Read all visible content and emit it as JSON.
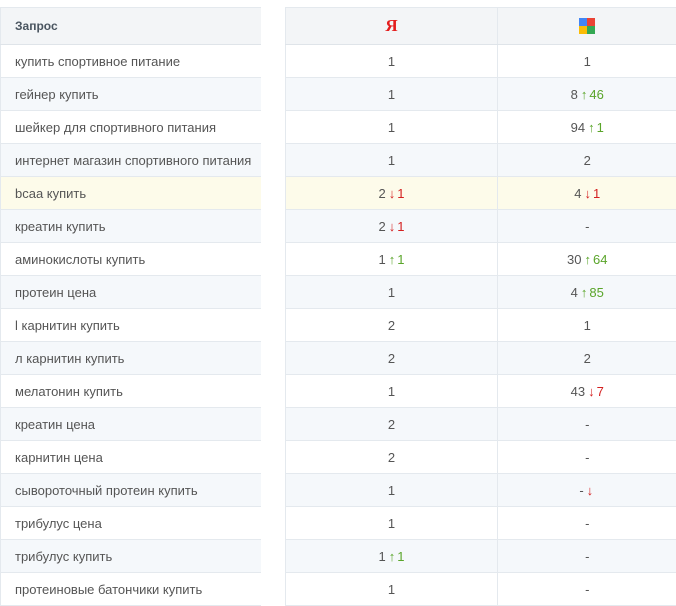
{
  "header": {
    "query_label": "Запрос",
    "yandex_logo": "Я",
    "google_icon": "google-icon"
  },
  "colors": {
    "up": "#5aa52a",
    "down": "#d42020",
    "yandex": "#e41d1d"
  },
  "rows": [
    {
      "query": "купить спортивное питание",
      "y": "1",
      "y_dir": "",
      "y_delta": "",
      "g": "1",
      "g_dir": "",
      "g_delta": ""
    },
    {
      "query": "гейнер купить",
      "y": "1",
      "y_dir": "",
      "y_delta": "",
      "g": "8",
      "g_dir": "up",
      "g_delta": "46"
    },
    {
      "query": "шейкер для спортивного питания",
      "y": "1",
      "y_dir": "",
      "y_delta": "",
      "g": "94",
      "g_dir": "up",
      "g_delta": "1"
    },
    {
      "query": "интернет магазин спортивного питания",
      "y": "1",
      "y_dir": "",
      "y_delta": "",
      "g": "2",
      "g_dir": "",
      "g_delta": ""
    },
    {
      "query": "bcaa купить",
      "y": "2",
      "y_dir": "down",
      "y_delta": "1",
      "g": "4",
      "g_dir": "down",
      "g_delta": "1",
      "highlight": true
    },
    {
      "query": "креатин купить",
      "y": "2",
      "y_dir": "down",
      "y_delta": "1",
      "g": "-",
      "g_dir": "",
      "g_delta": ""
    },
    {
      "query": "аминокислоты купить",
      "y": "1",
      "y_dir": "up",
      "y_delta": "1",
      "g": "30",
      "g_dir": "up",
      "g_delta": "64"
    },
    {
      "query": "протеин цена",
      "y": "1",
      "y_dir": "",
      "y_delta": "",
      "g": "4",
      "g_dir": "up",
      "g_delta": "85"
    },
    {
      "query": "l карнитин купить",
      "y": "2",
      "y_dir": "",
      "y_delta": "",
      "g": "1",
      "g_dir": "",
      "g_delta": ""
    },
    {
      "query": "л карнитин купить",
      "y": "2",
      "y_dir": "",
      "y_delta": "",
      "g": "2",
      "g_dir": "",
      "g_delta": ""
    },
    {
      "query": "мелатонин купить",
      "y": "1",
      "y_dir": "",
      "y_delta": "",
      "g": "43",
      "g_dir": "down",
      "g_delta": "7"
    },
    {
      "query": "креатин цена",
      "y": "2",
      "y_dir": "",
      "y_delta": "",
      "g": "-",
      "g_dir": "",
      "g_delta": ""
    },
    {
      "query": "карнитин цена",
      "y": "2",
      "y_dir": "",
      "y_delta": "",
      "g": "-",
      "g_dir": "",
      "g_delta": ""
    },
    {
      "query": "сывороточный протеин купить",
      "y": "1",
      "y_dir": "",
      "y_delta": "",
      "g": "-",
      "g_dir": "down",
      "g_delta": ""
    },
    {
      "query": "трибулус цена",
      "y": "1",
      "y_dir": "",
      "y_delta": "",
      "g": "-",
      "g_dir": "",
      "g_delta": ""
    },
    {
      "query": "трибулус купить",
      "y": "1",
      "y_dir": "up",
      "y_delta": "1",
      "g": "-",
      "g_dir": "",
      "g_delta": ""
    },
    {
      "query": "протеиновые батончики купить",
      "y": "1",
      "y_dir": "",
      "y_delta": "",
      "g": "-",
      "g_dir": "",
      "g_delta": ""
    }
  ]
}
